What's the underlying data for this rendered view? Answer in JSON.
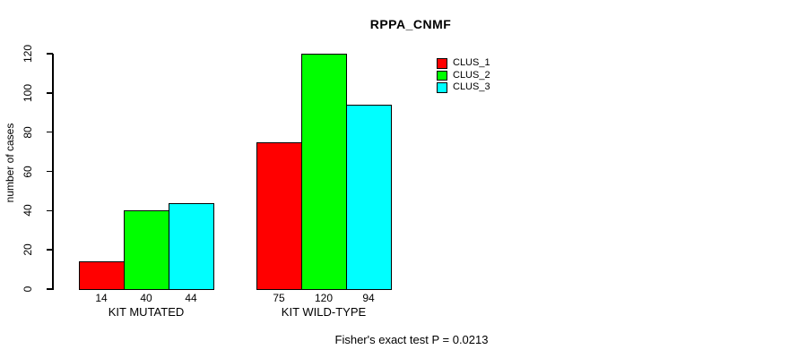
{
  "chart_data": {
    "type": "bar",
    "title": "RPPA_CNMF",
    "xlabel": "",
    "ylabel": "number of cases",
    "categories": [
      "KIT MUTATED",
      "KIT WILD-TYPE"
    ],
    "series": [
      {
        "name": "CLUS_1",
        "color": "#ff0000",
        "values": [
          14,
          75
        ]
      },
      {
        "name": "CLUS_2",
        "color": "#00ff00",
        "values": [
          40,
          120
        ]
      },
      {
        "name": "CLUS_3",
        "color": "#00ffff",
        "values": [
          44,
          94
        ]
      }
    ],
    "bar_value_labels": [
      [
        14,
        40,
        44
      ],
      [
        75,
        120,
        94
      ]
    ],
    "ylim": [
      0,
      120
    ],
    "yticks": [
      0,
      20,
      40,
      60,
      80,
      100,
      120
    ],
    "grid": false,
    "legend_position": "top-right",
    "annotation": "Fisher's exact test P = 0.0213"
  }
}
